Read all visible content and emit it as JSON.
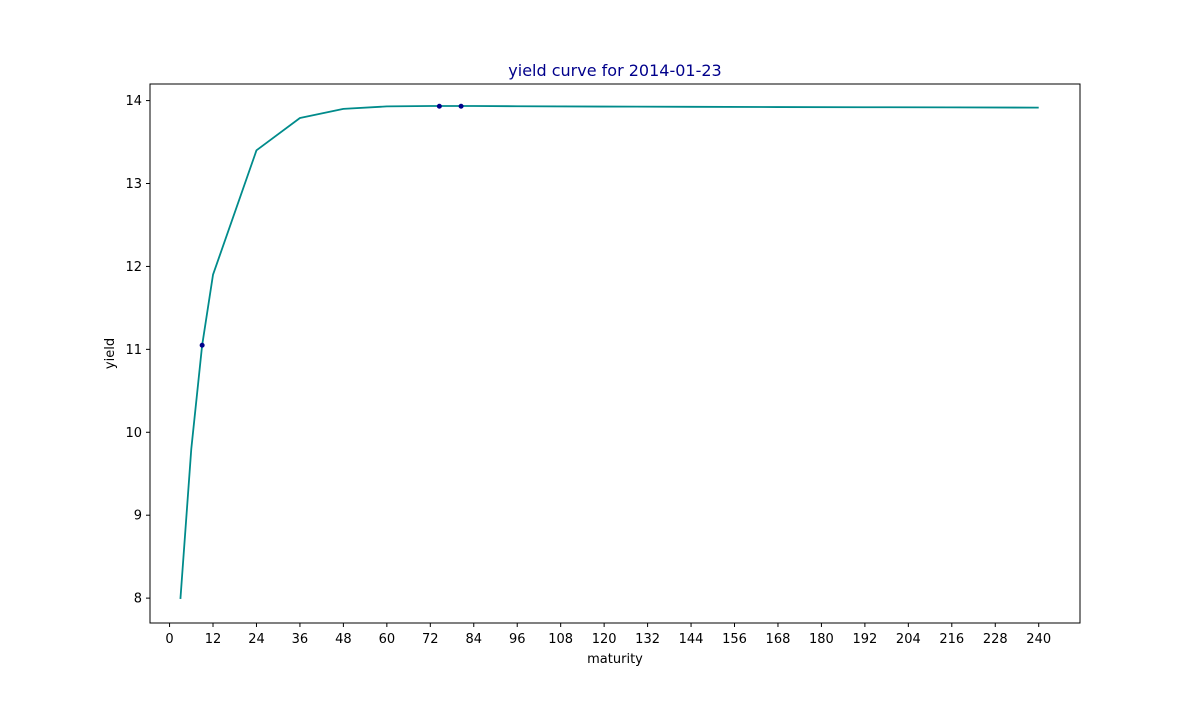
{
  "chart_data": {
    "type": "line",
    "title": "yield curve for 2014-01-23",
    "xlabel": "maturity",
    "ylabel": "yield",
    "xlim": [
      -5.4,
      251.4
    ],
    "ylim": [
      7.7,
      14.2
    ],
    "xticks": [
      0,
      12,
      24,
      36,
      48,
      60,
      72,
      84,
      96,
      108,
      120,
      132,
      144,
      156,
      168,
      180,
      192,
      204,
      216,
      228,
      240
    ],
    "xtick_labels": [
      "0",
      "12",
      "24",
      "36",
      "48",
      "60",
      "72",
      "84",
      "96",
      "108",
      "120",
      "132",
      "144",
      "156",
      "168",
      "180",
      "192",
      "204",
      "216",
      "228",
      "240"
    ],
    "yticks": [
      8,
      9,
      10,
      11,
      12,
      13,
      14
    ],
    "ytick_labels": [
      "8",
      "9",
      "10",
      "11",
      "12",
      "13",
      "14"
    ],
    "grid": false,
    "series": [
      {
        "kind": "line",
        "color": "#008b8b",
        "x": [
          3,
          6,
          9,
          12,
          24,
          36,
          48,
          60,
          72,
          84,
          96,
          120,
          144,
          168,
          192,
          216,
          240
        ],
        "y": [
          7.99,
          9.8,
          11.05,
          11.9,
          13.4,
          13.79,
          13.9,
          13.93,
          13.935,
          13.935,
          13.932,
          13.928,
          13.925,
          13.922,
          13.92,
          13.918,
          13.915
        ]
      },
      {
        "kind": "scatter",
        "color": "#00008b",
        "x": [
          9,
          74.5,
          80.5
        ],
        "y": [
          11.05,
          13.932,
          13.932
        ]
      }
    ]
  },
  "colors": {
    "title": "#00008b",
    "line": "#008b8b",
    "points": "#00008b",
    "axes": "#000000"
  }
}
